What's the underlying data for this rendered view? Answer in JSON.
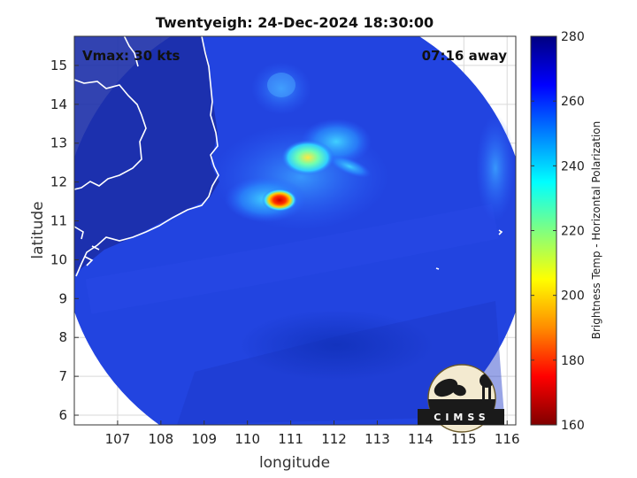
{
  "title": "Twentyeigh: 24-Dec-2024 18:30:00",
  "vmax_label": "Vmax: 30 kts",
  "time_away": "07:16 away",
  "logo_text": "CIMSS",
  "chart_data": {
    "type": "heatmap",
    "xlabel": "longitude",
    "ylabel": "latitude",
    "xlim": [
      106.0,
      116.2
    ],
    "ylim": [
      5.75,
      15.75
    ],
    "xticks": [
      107,
      108,
      109,
      110,
      111,
      112,
      113,
      114,
      115,
      116
    ],
    "yticks": [
      6,
      7,
      8,
      9,
      10,
      11,
      12,
      13,
      14,
      15
    ],
    "grid": true,
    "colorbar": {
      "label": "Brightness Temp - Horizontal Polarization",
      "range": [
        160,
        280
      ],
      "ticks": [
        280,
        260,
        240,
        220,
        200,
        180,
        160
      ],
      "colors": [
        "#800000",
        "#ff0000",
        "#ff8c00",
        "#ffff00",
        "#80ff80",
        "#00ffff",
        "#0080ff",
        "#0000ff",
        "#000080"
      ]
    },
    "swath": {
      "center_lon": 111.1,
      "center_lat": 10.65,
      "radius_deg": 5.4
    },
    "features": [
      {
        "name": "cold-core",
        "lon": 110.8,
        "lat": 11.5,
        "value": 175
      },
      {
        "name": "convective-band",
        "lon": 111.5,
        "lat": 12.4,
        "value": 215
      },
      {
        "name": "convective-outer",
        "lon": 112.0,
        "lat": 12.8,
        "value": 245
      },
      {
        "name": "northern-cell",
        "lon": 110.7,
        "lat": 14.1,
        "value": 255
      }
    ]
  }
}
